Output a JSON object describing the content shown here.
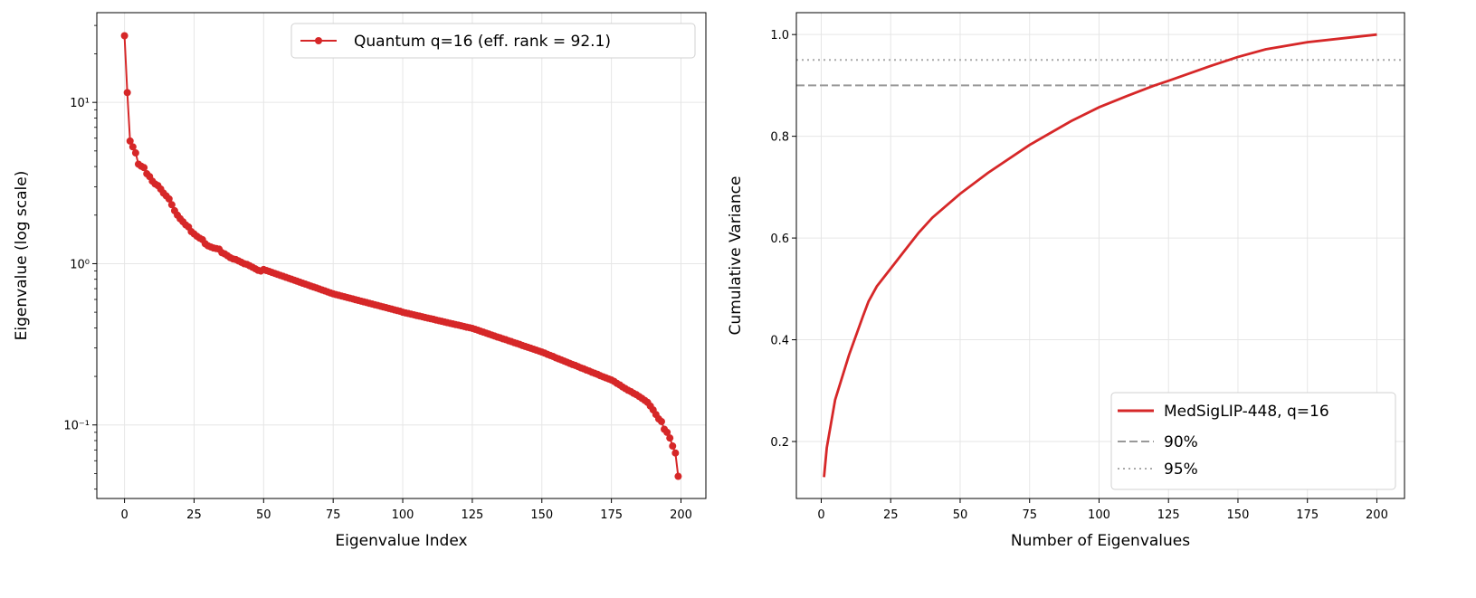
{
  "chart_data": [
    {
      "type": "line",
      "title": "",
      "xlabel": "Eigenvalue Index",
      "ylabel": "Eigenvalue (log scale)",
      "yscale": "log",
      "xlim": [
        -9.95,
        208.95
      ],
      "ylim": [
        0.035,
        36
      ],
      "grid": true,
      "legend_placement": "top-right",
      "x_ticks": [
        0,
        25,
        50,
        75,
        100,
        125,
        150,
        175,
        200
      ],
      "y_ticks": [
        0.1,
        1,
        10
      ],
      "y_tick_labels": [
        "10⁻¹",
        "10⁰",
        "10¹"
      ],
      "series": [
        {
          "name": "Quantum q=16 (eff. rank = 92.1)",
          "color": "#d62728",
          "marker": "circle",
          "x_start": 0,
          "values": [
            25.9,
            11.5,
            5.76,
            5.3,
            4.86,
            4.14,
            4.02,
            3.94,
            3.61,
            3.47,
            3.25,
            3.12,
            3.05,
            2.9,
            2.74,
            2.63,
            2.52,
            2.32,
            2.13,
            2.0,
            1.9,
            1.82,
            1.74,
            1.69,
            1.58,
            1.53,
            1.48,
            1.44,
            1.41,
            1.33,
            1.29,
            1.27,
            1.25,
            1.24,
            1.23,
            1.17,
            1.15,
            1.12,
            1.09,
            1.07,
            1.06,
            1.04,
            1.02,
            1.0,
            0.99,
            0.97,
            0.95,
            0.93,
            0.91,
            0.9,
            0.92,
            0.907,
            0.895,
            0.882,
            0.87,
            0.858,
            0.846,
            0.835,
            0.823,
            0.812,
            0.801,
            0.79,
            0.779,
            0.768,
            0.757,
            0.747,
            0.737,
            0.726,
            0.716,
            0.707,
            0.697,
            0.687,
            0.678,
            0.668,
            0.659,
            0.65,
            0.643,
            0.637,
            0.63,
            0.624,
            0.617,
            0.611,
            0.605,
            0.598,
            0.592,
            0.586,
            0.58,
            0.574,
            0.568,
            0.562,
            0.556,
            0.551,
            0.545,
            0.539,
            0.534,
            0.528,
            0.523,
            0.517,
            0.512,
            0.507,
            0.5,
            0.495,
            0.491,
            0.486,
            0.482,
            0.477,
            0.473,
            0.469,
            0.464,
            0.46,
            0.456,
            0.452,
            0.447,
            0.443,
            0.439,
            0.435,
            0.431,
            0.427,
            0.423,
            0.419,
            0.416,
            0.412,
            0.408,
            0.404,
            0.401,
            0.397,
            0.392,
            0.387,
            0.381,
            0.376,
            0.371,
            0.366,
            0.361,
            0.356,
            0.351,
            0.347,
            0.342,
            0.338,
            0.333,
            0.329,
            0.324,
            0.32,
            0.316,
            0.311,
            0.307,
            0.303,
            0.299,
            0.295,
            0.291,
            0.287,
            0.283,
            0.279,
            0.274,
            0.27,
            0.266,
            0.261,
            0.257,
            0.253,
            0.249,
            0.245,
            0.241,
            0.237,
            0.234,
            0.23,
            0.226,
            0.223,
            0.219,
            0.216,
            0.212,
            0.209,
            0.206,
            0.202,
            0.199,
            0.196,
            0.193,
            0.19,
            0.186,
            0.181,
            0.177,
            0.172,
            0.168,
            0.164,
            0.161,
            0.157,
            0.154,
            0.15,
            0.146,
            0.142,
            0.138,
            0.131,
            0.124,
            0.116,
            0.109,
            0.105,
            0.094,
            0.09,
            0.083,
            0.074,
            0.067,
            0.048
          ]
        }
      ]
    },
    {
      "type": "line",
      "title": "",
      "xlabel": "Number of Eigenvalues",
      "ylabel": "Cumulative Variance",
      "xlim": [
        -8.95,
        209.95
      ],
      "ylim": [
        0.088,
        1.043
      ],
      "grid": true,
      "legend_placement": "lower-right",
      "x_ticks": [
        0,
        25,
        50,
        75,
        100,
        125,
        150,
        175,
        200
      ],
      "y_ticks": [
        0.2,
        0.4,
        0.6,
        0.8,
        1.0
      ],
      "y_tick_labels": [
        "0.2",
        "0.4",
        "0.6",
        "0.8",
        "1.0"
      ],
      "series": [
        {
          "name": "MedSigLIP-448, q=16",
          "color": "#d62728",
          "style": "solid",
          "x": [
            1,
            2,
            5,
            10,
            15,
            17,
            20,
            25,
            30,
            35,
            40,
            50,
            60,
            75,
            90,
            100,
            110,
            120,
            125,
            140,
            150,
            160,
            175,
            190,
            200
          ],
          "y": [
            0.13,
            0.188,
            0.282,
            0.37,
            0.446,
            0.475,
            0.505,
            0.54,
            0.575,
            0.61,
            0.64,
            0.687,
            0.728,
            0.783,
            0.83,
            0.857,
            0.879,
            0.9,
            0.909,
            0.938,
            0.956,
            0.971,
            0.985,
            0.994,
            1.0
          ]
        }
      ],
      "hlines": [
        {
          "name": "90%",
          "y": 0.9,
          "color": "#999999",
          "style": "dashed"
        },
        {
          "name": "95%",
          "y": 0.95,
          "color": "#aaaaaa",
          "style": "dotted"
        }
      ]
    }
  ]
}
